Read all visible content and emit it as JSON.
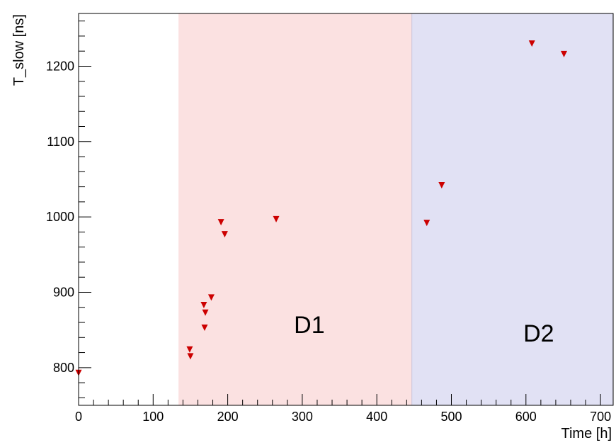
{
  "chart_data": {
    "type": "scatter",
    "title": "",
    "xlabel": "Time [h]",
    "ylabel": "T_slow [ns]",
    "xlim": [
      0,
      717
    ],
    "ylim": [
      750,
      1270
    ],
    "x_ticks": [
      0,
      100,
      200,
      300,
      400,
      500,
      600,
      700
    ],
    "y_ticks": [
      800,
      900,
      1000,
      1100,
      1200
    ],
    "grid": false,
    "marker_color": "#cc0000",
    "regions": [
      {
        "label": "D1",
        "x_start": 134,
        "x_end": 447,
        "color": "#fbe1e1"
      },
      {
        "label": "D2",
        "x_start": 447,
        "x_end": 717,
        "color": "#e1e1f4"
      }
    ],
    "series": [
      {
        "points": [
          {
            "x": 0,
            "y": 793
          },
          {
            "x": 149,
            "y": 824
          },
          {
            "x": 150,
            "y": 815
          },
          {
            "x": 168,
            "y": 883
          },
          {
            "x": 169,
            "y": 853
          },
          {
            "x": 170,
            "y": 873
          },
          {
            "x": 178,
            "y": 893
          },
          {
            "x": 191,
            "y": 993
          },
          {
            "x": 196,
            "y": 977
          },
          {
            "x": 265,
            "y": 997
          },
          {
            "x": 467,
            "y": 992
          },
          {
            "x": 487,
            "y": 1042
          },
          {
            "x": 608,
            "y": 1230
          },
          {
            "x": 651,
            "y": 1216
          }
        ]
      }
    ]
  }
}
